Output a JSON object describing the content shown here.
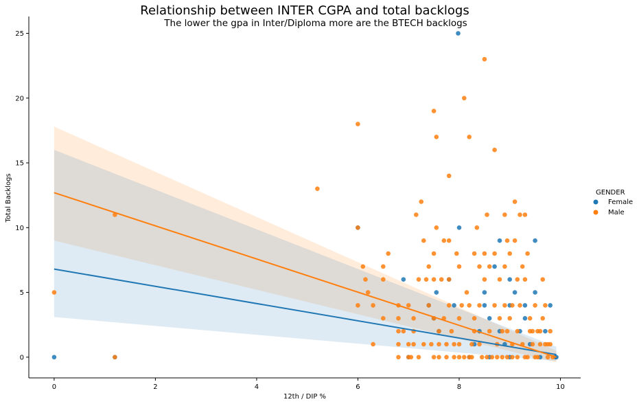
{
  "chart_data": {
    "type": "scatter",
    "title": "Relationship between INTER CGPA and total backlogs",
    "subtitle": "The lower the gpa in Inter/Diploma more are the BTECH backlogs",
    "xlabel": "12th  / DIP %",
    "ylabel": "Total Backlogs",
    "xlim": [
      -0.5,
      10.4
    ],
    "ylim": [
      -1.6,
      26.3
    ],
    "xticks": [
      0,
      2,
      4,
      6,
      8,
      10
    ],
    "yticks": [
      0,
      5,
      10,
      15,
      20,
      25
    ],
    "grid": false,
    "legend": {
      "title": "GENDER",
      "placement": "right"
    },
    "series": [
      {
        "name": "Female",
        "color": "#1f77b4",
        "points": [
          [
            0,
            0
          ],
          [
            1.2,
            0
          ],
          [
            6.0,
            10
          ],
          [
            6.9,
            6
          ],
          [
            7.0,
            0
          ],
          [
            7.4,
            4
          ],
          [
            7.5,
            3
          ],
          [
            7.55,
            5
          ],
          [
            7.8,
            6
          ],
          [
            7.9,
            4
          ],
          [
            7.98,
            25
          ],
          [
            8.0,
            10
          ],
          [
            8.3,
            1
          ],
          [
            8.5,
            5
          ],
          [
            8.5,
            4
          ],
          [
            8.6,
            3
          ],
          [
            8.7,
            7
          ],
          [
            8.8,
            9
          ],
          [
            8.8,
            2
          ],
          [
            8.9,
            1
          ],
          [
            9.0,
            6
          ],
          [
            9.0,
            0
          ],
          [
            9.1,
            5
          ],
          [
            9.2,
            2
          ],
          [
            9.3,
            3
          ],
          [
            9.4,
            1
          ],
          [
            9.5,
            9
          ],
          [
            9.5,
            5
          ],
          [
            9.6,
            0
          ],
          [
            9.7,
            2
          ],
          [
            9.8,
            4
          ],
          [
            9.9,
            0
          ],
          [
            9.92,
            0
          ],
          [
            9.0,
            4
          ],
          [
            8.2,
            0
          ],
          [
            8.4,
            2
          ],
          [
            7.6,
            2
          ],
          [
            9.3,
            4
          ],
          [
            8.6,
            0
          ]
        ],
        "fit": {
          "x": [
            0,
            9.92
          ],
          "y": [
            6.8,
            0.2
          ]
        },
        "ci": {
          "x": [
            0,
            9.92
          ],
          "upper": [
            16.0,
            0.8
          ],
          "lower": [
            3.1,
            -0.3
          ]
        }
      },
      {
        "name": "Male",
        "color": "#ff7f0e",
        "points": [
          [
            0,
            5
          ],
          [
            1.2,
            11
          ],
          [
            1.2,
            0
          ],
          [
            5.2,
            13
          ],
          [
            6.0,
            18
          ],
          [
            6.0,
            4
          ],
          [
            6.0,
            10
          ],
          [
            6.1,
            7
          ],
          [
            6.15,
            6
          ],
          [
            6.2,
            5
          ],
          [
            6.3,
            4
          ],
          [
            6.3,
            1
          ],
          [
            6.5,
            7
          ],
          [
            6.5,
            6
          ],
          [
            6.5,
            3
          ],
          [
            6.6,
            8
          ],
          [
            6.8,
            4
          ],
          [
            6.8,
            3
          ],
          [
            6.8,
            2
          ],
          [
            6.8,
            1
          ],
          [
            6.8,
            0
          ],
          [
            7.0,
            1
          ],
          [
            7.0,
            0
          ],
          [
            7.05,
            0
          ],
          [
            7.1,
            3
          ],
          [
            7.1,
            2
          ],
          [
            7.1,
            1
          ],
          [
            7.15,
            11
          ],
          [
            7.2,
            0
          ],
          [
            7.25,
            12
          ],
          [
            7.3,
            9
          ],
          [
            7.3,
            1
          ],
          [
            7.35,
            6
          ],
          [
            7.4,
            7
          ],
          [
            7.4,
            4
          ],
          [
            7.45,
            1
          ],
          [
            7.5,
            19
          ],
          [
            7.5,
            8
          ],
          [
            7.5,
            3
          ],
          [
            7.5,
            6
          ],
          [
            7.5,
            0
          ],
          [
            7.55,
            10
          ],
          [
            7.55,
            17
          ],
          [
            7.6,
            2
          ],
          [
            7.6,
            1
          ],
          [
            7.6,
            0
          ],
          [
            7.65,
            6
          ],
          [
            7.7,
            9
          ],
          [
            7.7,
            3
          ],
          [
            7.75,
            1
          ],
          [
            7.75,
            0
          ],
          [
            7.8,
            14
          ],
          [
            7.8,
            9
          ],
          [
            7.8,
            6
          ],
          [
            7.8,
            4
          ],
          [
            7.85,
            2
          ],
          [
            7.9,
            1
          ],
          [
            7.9,
            0
          ],
          [
            7.95,
            8
          ],
          [
            8.0,
            7
          ],
          [
            8.0,
            3
          ],
          [
            8.0,
            1
          ],
          [
            8.0,
            0
          ],
          [
            8.1,
            0
          ],
          [
            8.1,
            20
          ],
          [
            8.15,
            5
          ],
          [
            8.2,
            17
          ],
          [
            8.2,
            4
          ],
          [
            8.2,
            0
          ],
          [
            8.3,
            8
          ],
          [
            8.3,
            3
          ],
          [
            8.3,
            2
          ],
          [
            8.35,
            10
          ],
          [
            8.4,
            7
          ],
          [
            8.4,
            4
          ],
          [
            8.4,
            1
          ],
          [
            8.45,
            0
          ],
          [
            8.5,
            23
          ],
          [
            8.5,
            8
          ],
          [
            8.5,
            6
          ],
          [
            8.55,
            11
          ],
          [
            8.6,
            7
          ],
          [
            8.6,
            2
          ],
          [
            8.65,
            0
          ],
          [
            8.7,
            16
          ],
          [
            8.7,
            8
          ],
          [
            8.7,
            4
          ],
          [
            8.75,
            1
          ],
          [
            8.8,
            6
          ],
          [
            8.8,
            3
          ],
          [
            8.85,
            0
          ],
          [
            8.9,
            11
          ],
          [
            8.9,
            7
          ],
          [
            8.9,
            4
          ],
          [
            8.95,
            9
          ],
          [
            8.95,
            2
          ],
          [
            9.0,
            8
          ],
          [
            9.0,
            3
          ],
          [
            9.05,
            1
          ],
          [
            9.05,
            0
          ],
          [
            9.1,
            12
          ],
          [
            9.1,
            9
          ],
          [
            9.15,
            6
          ],
          [
            9.15,
            2
          ],
          [
            9.2,
            11
          ],
          [
            9.2,
            4
          ],
          [
            9.25,
            7
          ],
          [
            9.25,
            1
          ],
          [
            9.3,
            11
          ],
          [
            9.3,
            6
          ],
          [
            9.3,
            0
          ],
          [
            9.35,
            8
          ],
          [
            9.4,
            3
          ],
          [
            9.4,
            2
          ],
          [
            9.45,
            1
          ],
          [
            9.5,
            4
          ],
          [
            9.5,
            0
          ],
          [
            9.55,
            2
          ],
          [
            9.6,
            1
          ],
          [
            9.65,
            6
          ],
          [
            9.65,
            3
          ],
          [
            9.7,
            4
          ],
          [
            9.7,
            1
          ],
          [
            9.75,
            0
          ],
          [
            9.8,
            2
          ],
          [
            9.8,
            1
          ],
          [
            9.85,
            0
          ],
          [
            8.25,
            0
          ],
          [
            8.55,
            0
          ],
          [
            8.75,
            0
          ],
          [
            8.95,
            0
          ],
          [
            9.15,
            0
          ],
          [
            9.35,
            0
          ],
          [
            9.55,
            0
          ],
          [
            7.0,
            4
          ],
          [
            7.2,
            6
          ],
          [
            6.9,
            2
          ],
          [
            8.05,
            4
          ],
          [
            8.25,
            1
          ],
          [
            8.85,
            2
          ],
          [
            9.05,
            4
          ],
          [
            9.45,
            2
          ],
          [
            9.6,
            2
          ],
          [
            9.75,
            1
          ]
        ],
        "fit": {
          "x": [
            0,
            9.92
          ],
          "y": [
            12.7,
            0.0
          ]
        },
        "ci": {
          "x": [
            0,
            9.92
          ],
          "upper": [
            17.8,
            0.5
          ],
          "lower": [
            9.0,
            -0.4
          ]
        }
      }
    ]
  }
}
